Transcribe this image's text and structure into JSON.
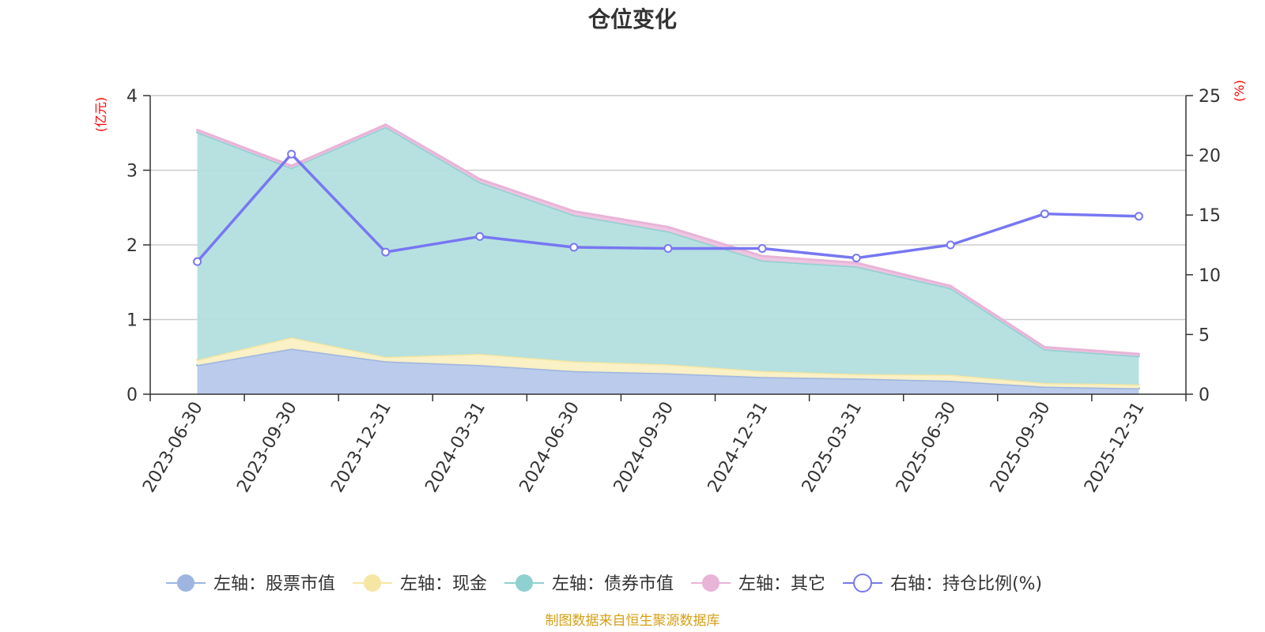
{
  "chart_data": {
    "type": "area",
    "title": "仓位变化",
    "left_unit": "(亿元)",
    "right_unit": "(%)",
    "categories": [
      "2023-06-30",
      "2023-09-30",
      "2023-12-31",
      "2024-03-31",
      "2024-06-30",
      "2024-09-30",
      "2024-12-31",
      "2025-03-31",
      "2025-06-30",
      "2025-09-30",
      "2025-12-31"
    ],
    "left_axis": {
      "min": 0,
      "max": 4,
      "ticks": [
        "0",
        "1",
        "2",
        "3",
        "4"
      ]
    },
    "right_axis": {
      "min": 0,
      "max": 25,
      "ticks": [
        "0",
        "5",
        "10",
        "15",
        "20",
        "25"
      ]
    },
    "series": [
      {
        "name": "左轴：股票市值",
        "axis": "left",
        "kind": "stacked-area",
        "color": "#9db5e0",
        "fill": "#b7c8ea",
        "values": [
          0.39,
          0.61,
          0.44,
          0.39,
          0.31,
          0.28,
          0.23,
          0.21,
          0.18,
          0.1,
          0.08
        ]
      },
      {
        "name": "左轴：现金",
        "axis": "left",
        "kind": "stacked-area",
        "color": "#f5e6a3",
        "fill": "#faf0c4",
        "values": [
          0.07,
          0.15,
          0.06,
          0.15,
          0.13,
          0.12,
          0.08,
          0.06,
          0.08,
          0.05,
          0.05
        ]
      },
      {
        "name": "左轴：债券市值",
        "axis": "left",
        "kind": "stacked-area",
        "color": "#8fd0d0",
        "fill": "#b3dfdf",
        "values": [
          3.05,
          2.27,
          3.08,
          2.3,
          1.96,
          1.78,
          1.48,
          1.44,
          1.16,
          0.45,
          0.38
        ]
      },
      {
        "name": "左轴：其它",
        "axis": "left",
        "kind": "stacked-area",
        "color": "#e8b4d8",
        "fill": "#eec3e0",
        "values": [
          0.03,
          0.03,
          0.03,
          0.04,
          0.05,
          0.06,
          0.06,
          0.05,
          0.03,
          0.03,
          0.03
        ]
      },
      {
        "name": "右轴：持仓比例(%)",
        "axis": "right",
        "kind": "line",
        "color": "#7777f2",
        "values": [
          11.1,
          20.1,
          11.9,
          13.2,
          12.3,
          12.2,
          12.2,
          11.4,
          12.5,
          15.1,
          14.9
        ]
      }
    ],
    "legend_position": "bottom-center",
    "grid": true
  },
  "source_text": "制图数据来自恒生聚源数据库"
}
